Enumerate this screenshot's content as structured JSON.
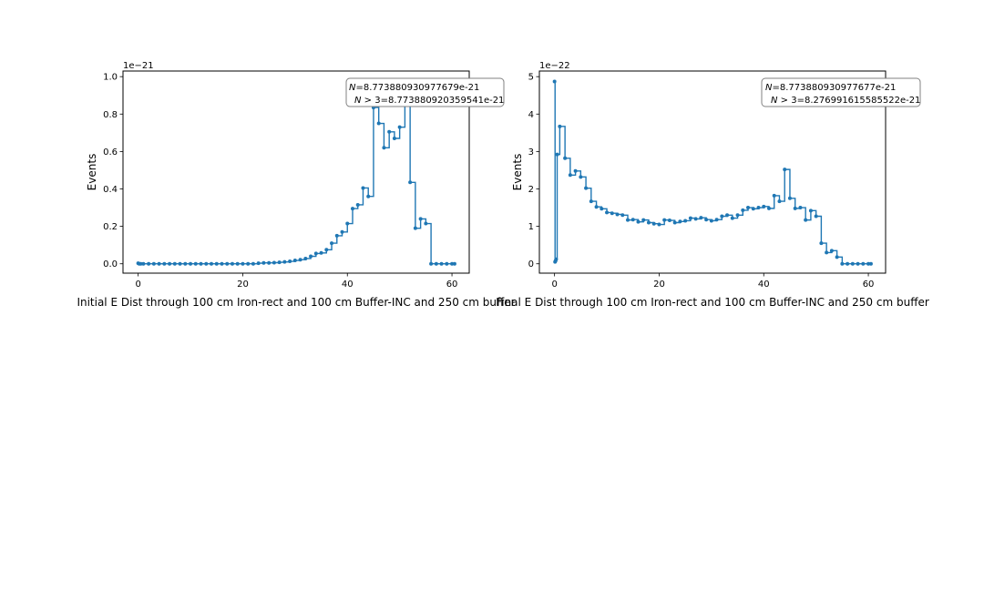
{
  "colors": {
    "series": "#1f77b4",
    "axes": "#000000",
    "annotation_border": "#808080",
    "background": "#ffffff"
  },
  "chart_data": [
    {
      "type": "line",
      "drawstyle": "steps-post",
      "marker": "dot",
      "xlabel": "Initial E Dist through 100 cm Iron-rect and 100 cm Buffer-INC and 250 cm buffer",
      "ylabel": "Events",
      "offset_text": "1e−21",
      "xlim": [
        -2.9,
        63.3
      ],
      "ylim": [
        -0.05,
        1.03
      ],
      "xticks": [
        0,
        20,
        40,
        60
      ],
      "xtick_labels": [
        "0",
        "20",
        "40",
        "60"
      ],
      "yticks": [
        0.0,
        0.2,
        0.4,
        0.6,
        0.8,
        1.0
      ],
      "ytick_labels": [
        "0.0",
        "0.2",
        "0.4",
        "0.6",
        "0.8",
        "1.0"
      ],
      "grid": false,
      "annotation": {
        "line1_prefix": "N",
        "line1_rest": "=8.773880930977679e-21",
        "line2_prefix": "N",
        "line2_rest": " > 3=8.773880920359541e-21",
        "placement": "top-right"
      },
      "series": [
        {
          "x": [
            0,
            0.2,
            0.5,
            1,
            2,
            3,
            4,
            5,
            6,
            7,
            8,
            9,
            10,
            11,
            12,
            13,
            14,
            15,
            16,
            17,
            18,
            19,
            20,
            21,
            22,
            23,
            24,
            25,
            26,
            27,
            28,
            29,
            30,
            31,
            32,
            33,
            34,
            35,
            36,
            37,
            38,
            39,
            40,
            41,
            42,
            43,
            44,
            45,
            46,
            47,
            48,
            49,
            50,
            51,
            52,
            53,
            54,
            55,
            56,
            57,
            58,
            59,
            60,
            60.5
          ],
          "y": [
            0.003,
            0,
            0,
            0,
            0,
            0,
            0,
            0,
            0,
            0,
            0,
            0,
            0,
            0,
            0,
            0,
            0,
            0,
            0,
            0,
            0,
            0,
            0,
            0,
            0,
            0.003,
            0.005,
            0.005,
            0.006,
            0.008,
            0.01,
            0.013,
            0.018,
            0.022,
            0.028,
            0.04,
            0.055,
            0.058,
            0.075,
            0.11,
            0.15,
            0.17,
            0.215,
            0.295,
            0.315,
            0.405,
            0.36,
            0.835,
            0.75,
            0.62,
            0.705,
            0.67,
            0.73,
            0.98,
            0.435,
            0.19,
            0.24,
            0.215,
            0.0,
            0,
            0,
            0,
            0,
            0
          ]
        }
      ]
    },
    {
      "type": "line",
      "drawstyle": "steps-post",
      "marker": "dot",
      "xlabel": "Final E Dist through 100 cm Iron-rect and 100 cm Buffer-INC and 250 cm buffer",
      "ylabel": "Events",
      "offset_text": "1e−22",
      "xlim": [
        -2.9,
        63.3
      ],
      "ylim": [
        -0.25,
        5.15
      ],
      "xticks": [
        0,
        20,
        40,
        60
      ],
      "xtick_labels": [
        "0",
        "20",
        "40",
        "60"
      ],
      "yticks": [
        0,
        1,
        2,
        3,
        4,
        5
      ],
      "ytick_labels": [
        "0",
        "1",
        "2",
        "3",
        "4",
        "5"
      ],
      "grid": false,
      "annotation": {
        "line1_prefix": "N",
        "line1_rest": "=8.773880930977677e-21",
        "line2_prefix": "N",
        "line2_rest": " > 3=8.276991615585522e-21",
        "placement": "top-right"
      },
      "series": [
        {
          "x": [
            0,
            0.1,
            0.2,
            0.3,
            0.5,
            1,
            2,
            3,
            4,
            5,
            6,
            7,
            8,
            9,
            10,
            11,
            12,
            13,
            14,
            15,
            16,
            17,
            18,
            19,
            20,
            21,
            22,
            23,
            24,
            25,
            26,
            27,
            28,
            29,
            30,
            31,
            32,
            33,
            34,
            35,
            36,
            37,
            38,
            39,
            40,
            41,
            42,
            43,
            44,
            45,
            46,
            47,
            48,
            49,
            50,
            51,
            52,
            53,
            54,
            55,
            56,
            57,
            58,
            59,
            60,
            60.5
          ],
          "y": [
            4.87,
            0.05,
            0.08,
            0.12,
            2.92,
            3.67,
            2.82,
            2.37,
            2.48,
            2.32,
            2.02,
            1.67,
            1.52,
            1.47,
            1.37,
            1.35,
            1.32,
            1.3,
            1.17,
            1.18,
            1.12,
            1.17,
            1.1,
            1.07,
            1.05,
            1.17,
            1.16,
            1.1,
            1.13,
            1.15,
            1.22,
            1.2,
            1.23,
            1.18,
            1.15,
            1.18,
            1.27,
            1.3,
            1.22,
            1.3,
            1.43,
            1.5,
            1.47,
            1.5,
            1.53,
            1.48,
            1.82,
            1.67,
            2.52,
            1.75,
            1.48,
            1.5,
            1.17,
            1.42,
            1.27,
            0.55,
            0.3,
            0.35,
            0.18,
            0.0,
            0,
            0,
            0,
            0,
            0,
            0
          ]
        }
      ]
    }
  ]
}
